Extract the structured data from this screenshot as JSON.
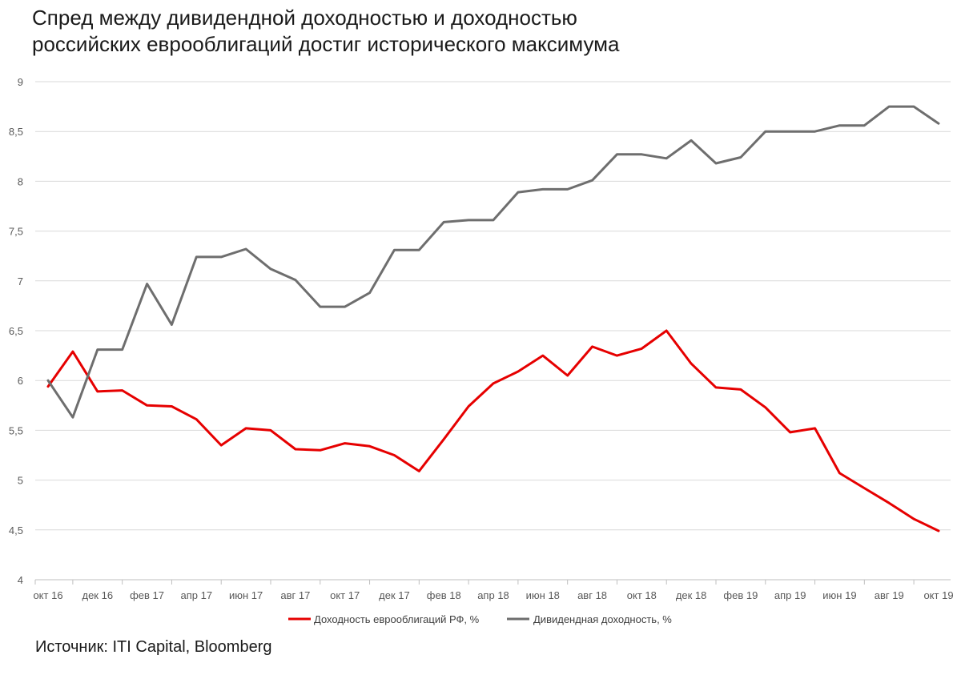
{
  "title_lines": [
    "Спред между дивидендной доходностью и доходностью",
    "российских еврооблигаций достиг исторического максимума"
  ],
  "source": "Источник: ITI Capital, Bloomberg",
  "chart_data": {
    "type": "line",
    "title": "Спред между дивидендной доходностью и доходностью российских еврооблигаций достиг исторического максимума",
    "xlabel": "",
    "ylabel": "",
    "ylim": [
      4,
      9
    ],
    "yticks": [
      "4",
      "4,5",
      "5",
      "5,5",
      "6",
      "6,5",
      "7",
      "7,5",
      "8",
      "8,5",
      "9"
    ],
    "grid": true,
    "legend_position": "bottom",
    "x_tick_labels": [
      "окт 16",
      "дек 16",
      "фев 17",
      "апр 17",
      "июн 17",
      "авг 17",
      "окт 17",
      "дек 17",
      "фев 18",
      "апр 18",
      "июн 18",
      "авг 18",
      "окт 18",
      "дек 18",
      "фев 19",
      "апр 19",
      "июн 19",
      "авг 19",
      "окт 19"
    ],
    "series": [
      {
        "name": "Доходность еврооблигаций РФ, %",
        "color": "#e60000",
        "values": [
          5.94,
          6.29,
          5.89,
          5.9,
          5.75,
          5.74,
          5.61,
          5.35,
          5.52,
          5.5,
          5.31,
          5.3,
          5.37,
          5.34,
          5.25,
          5.09,
          5.41,
          5.74,
          5.97,
          6.09,
          6.25,
          6.05,
          6.34,
          6.25,
          6.32,
          6.5,
          6.17,
          5.93,
          5.91,
          5.73,
          5.48,
          5.52,
          5.07,
          4.92,
          4.77,
          4.61,
          4.49
        ]
      },
      {
        "name": "Дивидендная доходность, %",
        "color": "#6e6e6e",
        "values": [
          6.0,
          5.63,
          6.31,
          6.31,
          6.97,
          6.56,
          7.24,
          7.24,
          7.32,
          7.12,
          7.01,
          6.74,
          6.74,
          6.88,
          7.31,
          7.31,
          7.59,
          7.61,
          7.61,
          7.89,
          7.92,
          7.92,
          8.01,
          8.27,
          8.27,
          8.23,
          8.41,
          8.18,
          8.24,
          8.5,
          8.5,
          8.5,
          8.56,
          8.56,
          8.75,
          8.75,
          8.58
        ]
      }
    ]
  }
}
